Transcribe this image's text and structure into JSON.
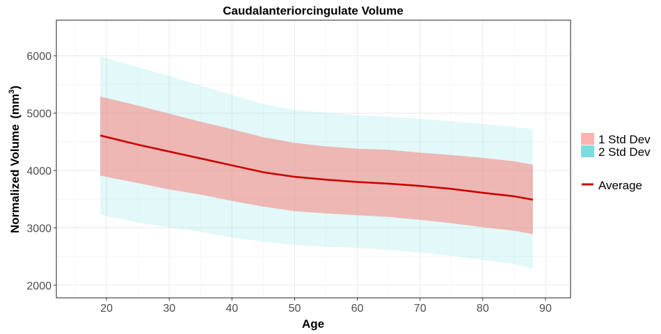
{
  "chart_data": {
    "type": "area",
    "title": "Caudalanteriorcingulate Volume",
    "xlabel": "Age",
    "ylabel": "Normalized Volume",
    "ylabel_unit_base": "mm",
    "ylabel_unit_exp": "3",
    "xlim": [
      12,
      94
    ],
    "ylim": [
      1780,
      6620
    ],
    "x_ticks": [
      20,
      30,
      40,
      50,
      60,
      70,
      80,
      90
    ],
    "y_ticks": [
      2000,
      3000,
      4000,
      5000,
      6000
    ],
    "grid": true,
    "legend_position": "right",
    "x": [
      19,
      25,
      30,
      35,
      40,
      45,
      50,
      55,
      60,
      65,
      70,
      75,
      80,
      85,
      88
    ],
    "series": [
      {
        "name": "2 Std Dev",
        "kind": "band",
        "color": "#7fdde2",
        "lower": [
          3230,
          3090,
          3010,
          2930,
          2830,
          2760,
          2700,
          2670,
          2650,
          2620,
          2570,
          2510,
          2440,
          2370,
          2290
        ],
        "upper": [
          5990,
          5800,
          5650,
          5480,
          5320,
          5160,
          5050,
          5010,
          4960,
          4940,
          4900,
          4860,
          4810,
          4760,
          4720
        ]
      },
      {
        "name": "1 Std Dev",
        "kind": "band",
        "color": "#f8766d",
        "lower": [
          3910,
          3780,
          3670,
          3580,
          3470,
          3370,
          3290,
          3250,
          3220,
          3190,
          3140,
          3080,
          3010,
          2950,
          2890
        ],
        "upper": [
          5290,
          5130,
          4990,
          4850,
          4720,
          4580,
          4480,
          4420,
          4380,
          4360,
          4310,
          4270,
          4220,
          4160,
          4100
        ]
      },
      {
        "name": "Average",
        "kind": "line",
        "color": "#cc0000",
        "values": [
          4610,
          4450,
          4330,
          4210,
          4090,
          3970,
          3890,
          3840,
          3800,
          3770,
          3730,
          3680,
          3610,
          3550,
          3490
        ]
      }
    ]
  }
}
